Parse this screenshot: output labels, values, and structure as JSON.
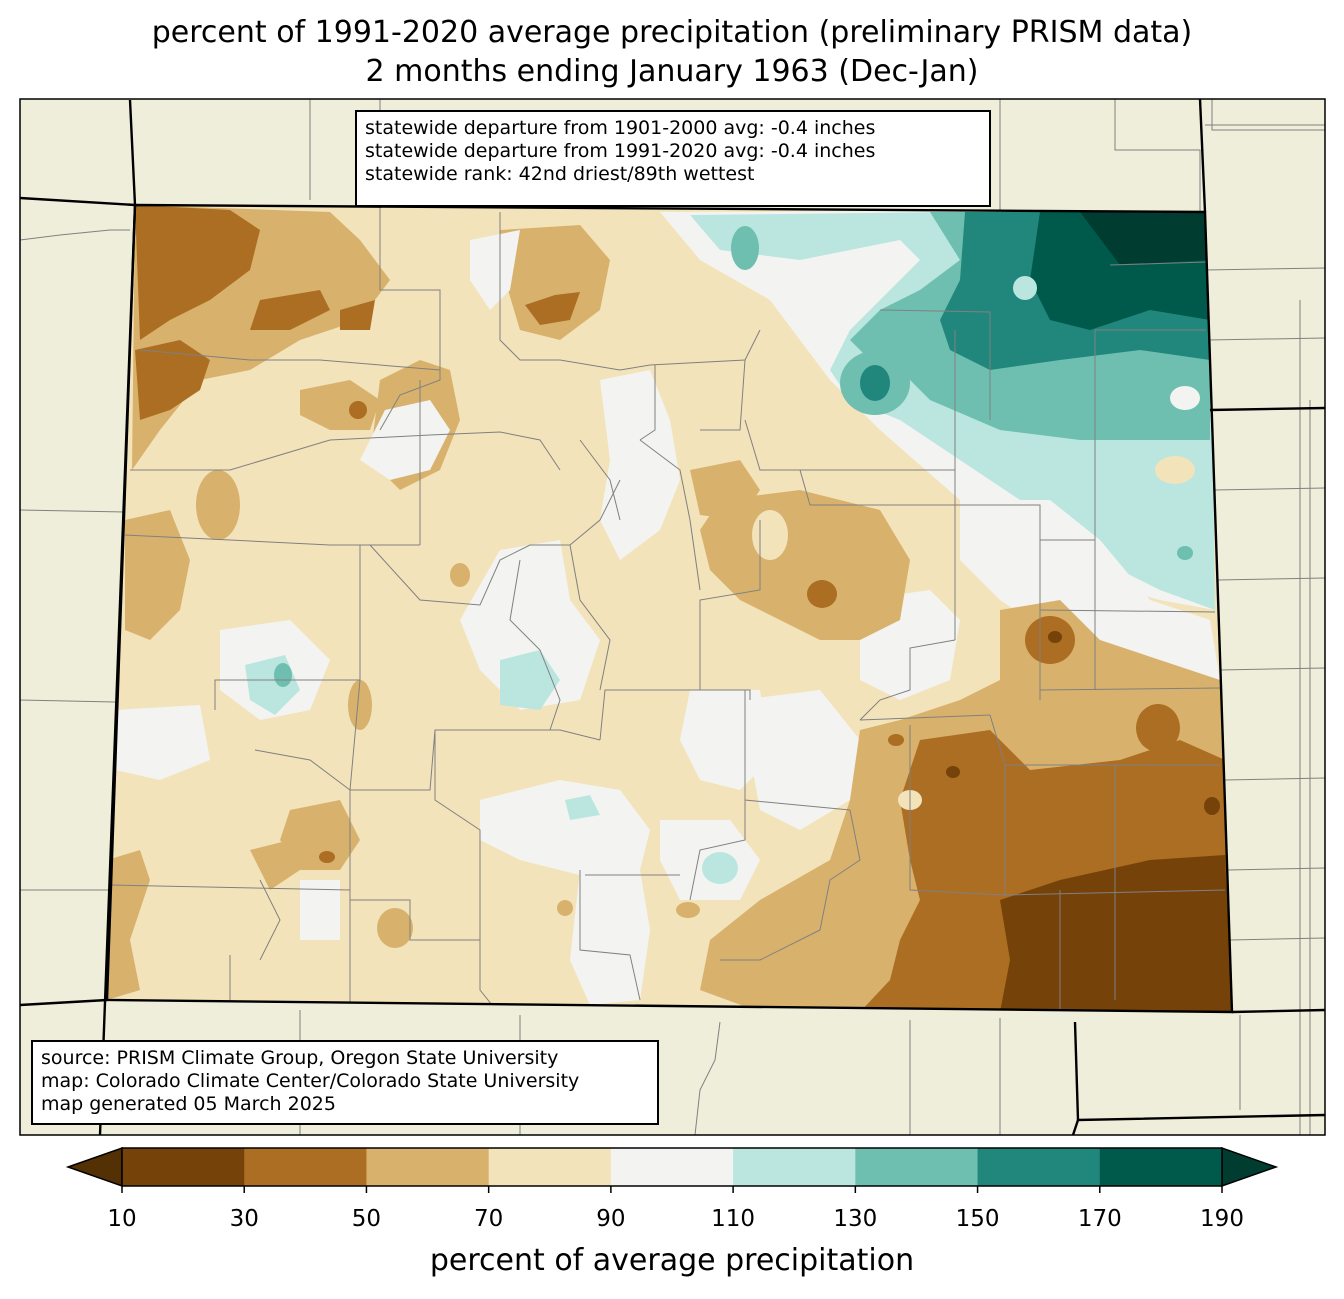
{
  "title": {
    "line1": "percent of 1991-2020 average precipitation (preliminary PRISM data)",
    "line2": "2 months ending January 1963 (Dec-Jan)"
  },
  "stats": {
    "line1": "statewide departure from 1901-2000 avg: -0.4 inches",
    "line2": "statewide departure from 1991-2020 avg: -0.4 inches",
    "line3": "statewide rank: 42nd driest/89th wettest"
  },
  "source": {
    "line1": "source: PRISM Climate Group, Oregon State University",
    "line2": "map: Colorado Climate Center/Colorado State University",
    "line3": "map generated 05 March 2025"
  },
  "colorbar": {
    "title": "percent of average precipitation",
    "ticks": [
      "10",
      "30",
      "50",
      "70",
      "90",
      "110",
      "130",
      "150",
      "170",
      "190"
    ],
    "under_color": "#543005",
    "over_color": "#003c30",
    "bins": [
      {
        "range": "10-30",
        "color": "#754209"
      },
      {
        "range": "30-50",
        "color": "#ab6e22"
      },
      {
        "range": "50-70",
        "color": "#d8b26c"
      },
      {
        "range": "70-90",
        "color": "#f3e3bb"
      },
      {
        "range": "90-110",
        "color": "#f3f4f1"
      },
      {
        "range": "110-130",
        "color": "#bae6df"
      },
      {
        "range": "130-150",
        "color": "#6ebfb0"
      },
      {
        "range": "150-170",
        "color": "#21877c"
      },
      {
        "range": "170-190",
        "color": "#005a4c"
      }
    ]
  },
  "colors": {
    "land": "#efeeda",
    "county_lines": "#808080",
    "state_lines": "#000000"
  }
}
